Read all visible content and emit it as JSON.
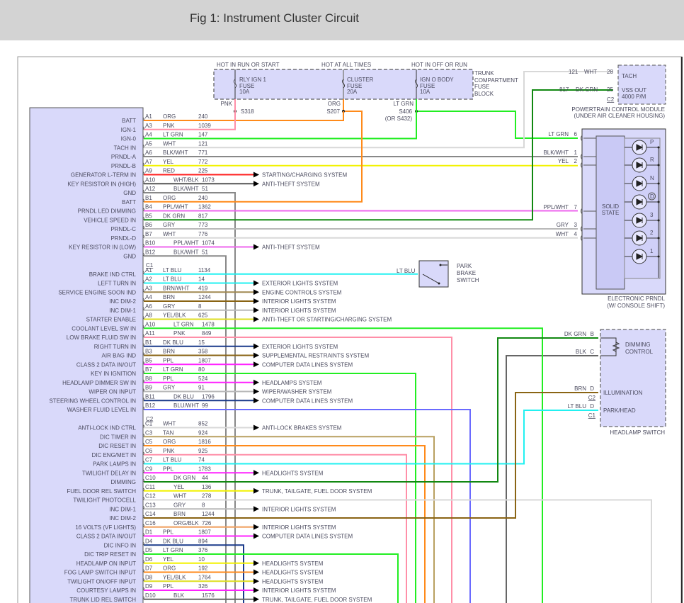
{
  "header": {
    "title": "Fig 1: Instrument Cluster Circuit"
  },
  "fuse_block": {
    "name_lines": [
      "TRUNK",
      "COMPARTMENT",
      "FUSE",
      "BLOCK"
    ],
    "feeds": [
      {
        "hot": "HOT IN RUN OR START",
        "fuse_lines": [
          "RLY IGN 1",
          "FUSE",
          "10A"
        ],
        "wire": "PNK",
        "splice": "S318",
        "splice_alt": ""
      },
      {
        "hot": "HOT AT ALL TIMES",
        "fuse_lines": [
          "CLUSTER",
          "FUSE",
          "20A"
        ],
        "wire": "ORG",
        "splice": "S207",
        "splice_alt": ""
      },
      {
        "hot": "HOT IN OFF OR RUN",
        "fuse_lines": [
          "IGN O BODY",
          "FUSE",
          "10A"
        ],
        "wire": "LT GRN",
        "splice": "S406",
        "splice_alt": "(OR S432)"
      }
    ]
  },
  "pcm": {
    "caption_lines": [
      "POWERTRAIN CONTROL MODULE",
      "(UNDER AIR CLEANER HOUSING)"
    ],
    "tach": "TACH",
    "vss_lines": [
      "VSS OUT",
      "4000 P/M"
    ],
    "connector": "C2",
    "pins": [
      {
        "circuit": "121",
        "color": "WHT",
        "pin": "28"
      },
      {
        "circuit": "817",
        "color": "DK GRN",
        "pin": "25"
      }
    ]
  },
  "prndl": {
    "caption_lines": [
      "ELECTRONIC PRNDL",
      "(W/ CONSOLE SHIFT)"
    ],
    "solid_state_lines": [
      "SOLID",
      "STATE"
    ],
    "pins": [
      {
        "color": "LT GRN",
        "pin": "6"
      },
      {
        "color": "BLK/WHT",
        "pin": "1"
      },
      {
        "color": "YEL",
        "pin": "2"
      },
      {
        "color": "PPL/WHT",
        "pin": "7"
      },
      {
        "color": "GRY",
        "pin": "3"
      },
      {
        "color": "WHT",
        "pin": "4"
      }
    ],
    "leds": [
      "P",
      "R",
      "N",
      "D",
      "3",
      "2",
      "1"
    ]
  },
  "park_brake": {
    "wire": "LT BLU",
    "label_lines": [
      "PARK",
      "BRAKE",
      "SWITCH"
    ]
  },
  "headlamp_switch": {
    "caption": "HEADLAMP SWITCH",
    "dimming_lines": [
      "DIMMING",
      "CONTROL"
    ],
    "illumination": "ILLUMINATION",
    "park_head": "PARK/HEAD",
    "pins": [
      {
        "color": "DK GRN",
        "pin": "B",
        "connector": ""
      },
      {
        "color": "BLK",
        "pin": "C",
        "connector": ""
      },
      {
        "color": "BRN",
        "pin": "D",
        "connector": "C2"
      },
      {
        "color": "LT BLU",
        "pin": "D",
        "connector": "C1"
      }
    ]
  },
  "wire_colors": {
    "ORG": "#ff8a1a",
    "PNK": "#ff8fa8",
    "LT GRN": "#22ee22",
    "WHT": "#d8d8d8",
    "BLK/WHT": "#888888",
    "YEL": "#f2f200",
    "RED": "#ff2020",
    "WHT/BLK": "#555555",
    "PPL/WHT": "#ee66ee",
    "DK GRN": "#118811",
    "GRY": "#b8b8b8",
    "LT BLU": "#22f0f0",
    "BRN/WHT": "#a08850",
    "BRN": "#8a6414",
    "YEL/BLK": "#dede20",
    "DK BLU": "#1a3a8a",
    "PPL": "#ff22ff",
    "BLU/WHT": "#6a6aff",
    "TAN": "#b8a060",
    "ORG/BLK": "#f0a060",
    "BLK": "#666666"
  },
  "cluster": {
    "sections": [
      {
        "connector": "",
        "pins": [
          {
            "label": "BATT",
            "pin": "A1",
            "color": "ORG",
            "circuit": "240",
            "dest": ""
          },
          {
            "label": "IGN-1",
            "pin": "A3",
            "color": "PNK",
            "circuit": "1039",
            "dest": ""
          },
          {
            "label": "IGN-0",
            "pin": "A4",
            "color": "LT GRN",
            "circuit": "147",
            "dest": ""
          },
          {
            "label": "TACH IN",
            "pin": "A5",
            "color": "WHT",
            "circuit": "121",
            "dest": ""
          },
          {
            "label": "PRNDL-A",
            "pin": "A6",
            "color": "BLK/WHT",
            "circuit": "771",
            "dest": ""
          },
          {
            "label": "PRNDL-B",
            "pin": "A7",
            "color": "YEL",
            "circuit": "772",
            "dest": ""
          },
          {
            "label": "GENERATOR L-TERM IN",
            "pin": "A9",
            "color": "RED",
            "circuit": "225",
            "dest": "STARTING/CHARGING SYSTEM"
          },
          {
            "label": "KEY RESISTOR IN (HIGH)",
            "pin": "A10",
            "color": "WHT/BLK",
            "circuit": "1073",
            "dest": "ANTI-THEFT SYSTEM"
          },
          {
            "label": "GND",
            "pin": "A12",
            "color": "BLK/WHT",
            "circuit": "51",
            "dest": ""
          },
          {
            "label": "BATT",
            "pin": "B1",
            "color": "ORG",
            "circuit": "240",
            "dest": ""
          },
          {
            "label": "PRNDL LED DIMMING",
            "pin": "B4",
            "color": "PPL/WHT",
            "circuit": "1362",
            "dest": ""
          },
          {
            "label": "VEHICLE SPEED IN",
            "pin": "B5",
            "color": "DK GRN",
            "circuit": "817",
            "dest": ""
          },
          {
            "label": "PRNDL-C",
            "pin": "B6",
            "color": "GRY",
            "circuit": "773",
            "dest": ""
          },
          {
            "label": "PRNDL-D",
            "pin": "B7",
            "color": "WHT",
            "circuit": "776",
            "dest": ""
          },
          {
            "label": "KEY RESISTOR IN (LOW)",
            "pin": "B10",
            "color": "PPL/WHT",
            "circuit": "1074",
            "dest": "ANTI-THEFT SYSTEM"
          },
          {
            "label": "GND",
            "pin": "B12",
            "color": "BLK/WHT",
            "circuit": "51",
            "dest": ""
          }
        ]
      },
      {
        "connector": "C1",
        "pins": [
          {
            "label": "BRAKE IND CTRL",
            "pin": "A1",
            "color": "LT BLU",
            "circuit": "1134",
            "dest": ""
          },
          {
            "label": "LEFT TURN IN",
            "pin": "A2",
            "color": "LT BLU",
            "circuit": "14",
            "dest": "EXTERIOR LIGHTS SYSTEM"
          },
          {
            "label": "SERVICE ENGINE SOON IND",
            "pin": "A3",
            "color": "BRN/WHT",
            "circuit": "419",
            "dest": "ENGINE CONTROLS SYSTEM"
          },
          {
            "label": "INC DIM-2",
            "pin": "A4",
            "color": "BRN",
            "circuit": "1244",
            "dest": "INTERIOR LIGHTS SYSTEM"
          },
          {
            "label": "INC DIM-1",
            "pin": "A6",
            "color": "GRY",
            "circuit": "8",
            "dest": "INTERIOR LIGHTS SYSTEM"
          },
          {
            "label": "STARTER ENABLE",
            "pin": "A8",
            "color": "YEL/BLK",
            "circuit": "625",
            "dest": "ANTI-THEFT OR STARTING/CHARGING SYSTEM"
          },
          {
            "label": "COOLANT LEVEL SW IN",
            "pin": "A10",
            "color": "LT GRN",
            "circuit": "1478",
            "dest": ""
          },
          {
            "label": "LOW BRAKE FLUID SW IN",
            "pin": "A11",
            "color": "PNK",
            "circuit": "849",
            "dest": ""
          },
          {
            "label": "RIGHT TURN IN",
            "pin": "B1",
            "color": "DK BLU",
            "circuit": "15",
            "dest": "EXTERIOR LIGHTS SYSTEM"
          },
          {
            "label": "AIR BAG IND",
            "pin": "B3",
            "color": "BRN",
            "circuit": "358",
            "dest": "SUPPLEMENTAL RESTRAINTS SYSTEM"
          },
          {
            "label": "CLASS 2 DATA IN/OUT",
            "pin": "B5",
            "color": "PPL",
            "circuit": "1807",
            "dest": "COMPUTER DATA LINES SYSTEM"
          },
          {
            "label": "KEY IN IGNITION",
            "pin": "B7",
            "color": "LT GRN",
            "circuit": "80",
            "dest": ""
          },
          {
            "label": "HEADLAMP DIMMER SW IN",
            "pin": "B8",
            "color": "PPL",
            "circuit": "524",
            "dest": "HEADLAMPS SYSTEM"
          },
          {
            "label": "WIPER ON INPUT",
            "pin": "B9",
            "color": "GRY",
            "circuit": "91",
            "dest": "WIPER/WASHER SYSTEM"
          },
          {
            "label": "STEERING WHEEL CONTROL IN",
            "pin": "B11",
            "color": "DK BLU",
            "circuit": "1796",
            "dest": "COMPUTER DATA LINES SYSTEM"
          },
          {
            "label": "WASHER FLUID LEVEL IN",
            "pin": "B12",
            "color": "BLU/WHT",
            "circuit": "99",
            "dest": ""
          }
        ]
      },
      {
        "connector": "C2",
        "pins": [
          {
            "label": "ANTI-LOCK IND CTRL",
            "pin": "C1",
            "color": "WHT",
            "circuit": "852",
            "dest": "ANTI-LOCK BRAKES SYSTEM"
          },
          {
            "label": "DIC TIMER IN",
            "pin": "C3",
            "color": "TAN",
            "circuit": "924",
            "dest": ""
          },
          {
            "label": "DIC RESET IN",
            "pin": "C5",
            "color": "ORG",
            "circuit": "1816",
            "dest": ""
          },
          {
            "label": "DIC ENG/MET IN",
            "pin": "C6",
            "color": "PNK",
            "circuit": "925",
            "dest": ""
          },
          {
            "label": "PARK LAMPS IN",
            "pin": "C7",
            "color": "LT BLU",
            "circuit": "74",
            "dest": ""
          },
          {
            "label": "TWILIGHT DELAY IN",
            "pin": "C9",
            "color": "PPL",
            "circuit": "1783",
            "dest": "HEADLIGHTS SYSTEM"
          },
          {
            "label": "DIMMING",
            "pin": "C10",
            "color": "DK GRN",
            "circuit": "44",
            "dest": ""
          },
          {
            "label": "FUEL DOOR REL SWITCH",
            "pin": "C11",
            "color": "YEL",
            "circuit": "136",
            "dest": "TRUNK, TAILGATE, FUEL DOOR SYSTEM"
          },
          {
            "label": "TWILIGHT PHOTOCELL",
            "pin": "C12",
            "color": "WHT",
            "circuit": "278",
            "dest": ""
          },
          {
            "label": "INC DIM-1",
            "pin": "C13",
            "color": "GRY",
            "circuit": "8",
            "dest": "INTERIOR LIGHTS SYSTEM"
          },
          {
            "label": "INC DIM-2",
            "pin": "C14",
            "color": "BRN",
            "circuit": "1244",
            "dest": ""
          },
          {
            "label": "16 VOLTS (VF LIGHTS)",
            "pin": "C16",
            "color": "ORG/BLK",
            "circuit": "726",
            "dest": "INTERIOR LIGHTS SYSTEM"
          },
          {
            "label": "CLASS 2 DATA IN/OUT",
            "pin": "D1",
            "color": "PPL",
            "circuit": "1807",
            "dest": "COMPUTER DATA LINES SYSTEM"
          },
          {
            "label": "DIC INFO IN",
            "pin": "D4",
            "color": "DK BLU",
            "circuit": "894",
            "dest": ""
          },
          {
            "label": "DIC TRIP RESET IN",
            "pin": "D5",
            "color": "LT GRN",
            "circuit": "376",
            "dest": ""
          },
          {
            "label": "HEADLAMP ON INPUT",
            "pin": "D6",
            "color": "YEL",
            "circuit": "10",
            "dest": "HEADLIGHTS SYSTEM"
          },
          {
            "label": "FOG LAMP SWITCH INPUT",
            "pin": "D7",
            "color": "ORG",
            "circuit": "192",
            "dest": "HEADLIGHTS SYSTEM"
          },
          {
            "label": "TWILIGHT ON/OFF INPUT",
            "pin": "D8",
            "color": "YEL/BLK",
            "circuit": "1764",
            "dest": "HEADLIGHTS SYSTEM"
          },
          {
            "label": "COURTESY LAMPS IN",
            "pin": "D9",
            "color": "PPL",
            "circuit": "326",
            "dest": "INTERIOR LIGHTS SYSTEM"
          },
          {
            "label": "TRUNK LID REL SWITCH",
            "pin": "D10",
            "color": "BLK",
            "circuit": "1576",
            "dest": "TRUNK, TAILGATE, FUEL DOOR SYSTEM"
          }
        ]
      }
    ]
  }
}
